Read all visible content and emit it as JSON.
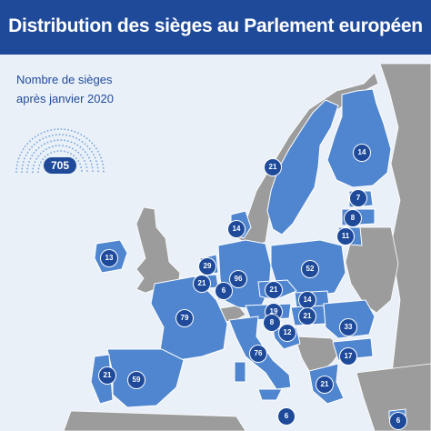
{
  "title": "Distribution des sièges au Parlement européen",
  "legend": {
    "line1": "Nombre de sièges",
    "line2": "après janvier 2020",
    "total": "705"
  },
  "colors": {
    "header": "#1f4a9a",
    "sea": "#eaf0f8",
    "eu_land": "#4f86cf",
    "non_eu_land": "#9c9c9c",
    "badge": "#1f4a9a"
  },
  "seats": [
    {
      "id": "finland",
      "label": "14"
    },
    {
      "id": "sweden",
      "label": "21"
    },
    {
      "id": "estonia",
      "label": "7"
    },
    {
      "id": "latvia",
      "label": "8"
    },
    {
      "id": "lithuania",
      "label": "11"
    },
    {
      "id": "denmark",
      "label": "14"
    },
    {
      "id": "ireland",
      "label": "13"
    },
    {
      "id": "netherlands",
      "label": "29"
    },
    {
      "id": "belgium",
      "label": "21"
    },
    {
      "id": "luxembourg",
      "label": "6"
    },
    {
      "id": "germany",
      "label": "96"
    },
    {
      "id": "poland",
      "label": "52"
    },
    {
      "id": "czechia",
      "label": "21"
    },
    {
      "id": "slovakia",
      "label": "14"
    },
    {
      "id": "austria",
      "label": "19"
    },
    {
      "id": "hungary",
      "label": "21"
    },
    {
      "id": "slovenia",
      "label": "8"
    },
    {
      "id": "croatia",
      "label": "12"
    },
    {
      "id": "france",
      "label": "79"
    },
    {
      "id": "romania",
      "label": "33"
    },
    {
      "id": "bulgaria",
      "label": "17"
    },
    {
      "id": "italy",
      "label": "76"
    },
    {
      "id": "portugal",
      "label": "21"
    },
    {
      "id": "spain",
      "label": "59"
    },
    {
      "id": "greece",
      "label": "21"
    },
    {
      "id": "malta",
      "label": "6"
    },
    {
      "id": "cyprus",
      "label": "6"
    }
  ]
}
